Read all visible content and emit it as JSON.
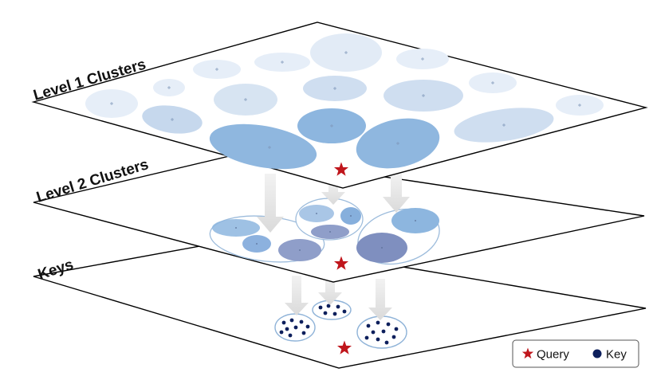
{
  "layers": [
    {
      "label": "Level 1 Clusters"
    },
    {
      "label": "Level 2 Clusters"
    },
    {
      "label": "Keys"
    }
  ],
  "legend": {
    "query_label": "Query",
    "key_label": "Key"
  },
  "colors": {
    "query_star": "#c0161c",
    "key_dot": "#0d1f5c",
    "cluster_light": "#dfe9f5",
    "cluster_mid": "#b6cfe9",
    "cluster_strong": "#8db6df",
    "cluster_purple": "#8f9ec9",
    "arrow": "#e2e2e2",
    "plane_stroke": "#000000"
  }
}
